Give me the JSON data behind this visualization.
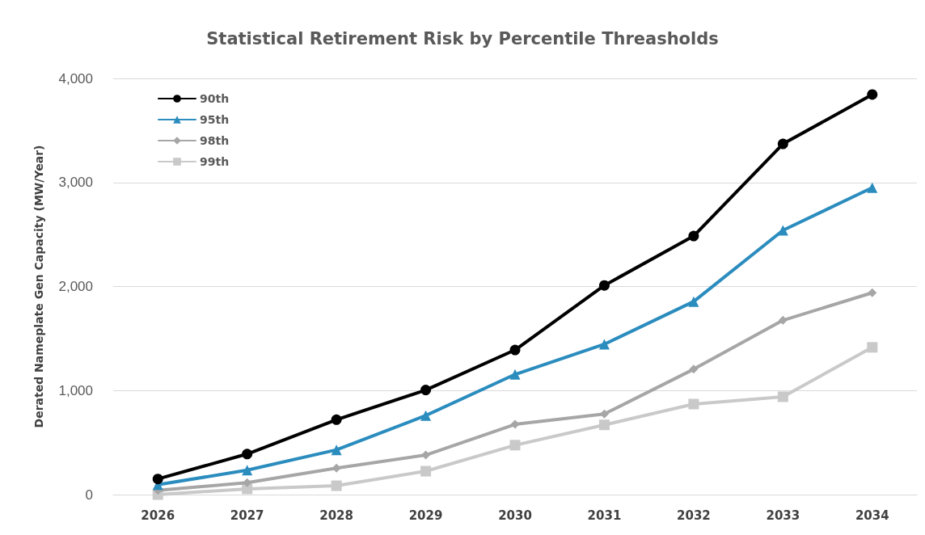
{
  "chart_data": {
    "type": "line",
    "title": "Statistical Retirement Risk by Percentile Threasholds",
    "ylabel": "Derated Nameplate Gen Capacity (MW/Year)",
    "categories": [
      "2026",
      "2027",
      "2028",
      "2029",
      "2030",
      "2031",
      "2032",
      "2033",
      "2034"
    ],
    "ylim": [
      0,
      4000
    ],
    "yticks": [
      {
        "value": 0,
        "label": "0"
      },
      {
        "value": 1000,
        "label": "1,000"
      },
      {
        "value": 2000,
        "label": "2,000"
      },
      {
        "value": 3000,
        "label": "3,000"
      },
      {
        "value": 4000,
        "label": "4,000"
      }
    ],
    "grid": "y",
    "legend": "top left",
    "line_style": "solid",
    "series": [
      {
        "name": "90th",
        "color": "#000000",
        "marker": "circle",
        "values": [
          150,
          390,
          720,
          1005,
          1390,
          2010,
          2485,
          3370,
          3845
        ]
      },
      {
        "name": "95th",
        "color": "#2b8cbe",
        "marker": "triangle",
        "values": [
          95,
          235,
          430,
          760,
          1155,
          1445,
          1855,
          2540,
          2950
        ]
      },
      {
        "name": "98th",
        "color": "#a6a6a6",
        "marker": "diamond",
        "values": [
          40,
          115,
          255,
          380,
          675,
          775,
          1205,
          1675,
          1940
        ]
      },
      {
        "name": "99th",
        "color": "#c9c9c9",
        "marker": "square",
        "values": [
          0,
          55,
          85,
          225,
          475,
          670,
          870,
          940,
          1415
        ]
      }
    ]
  }
}
